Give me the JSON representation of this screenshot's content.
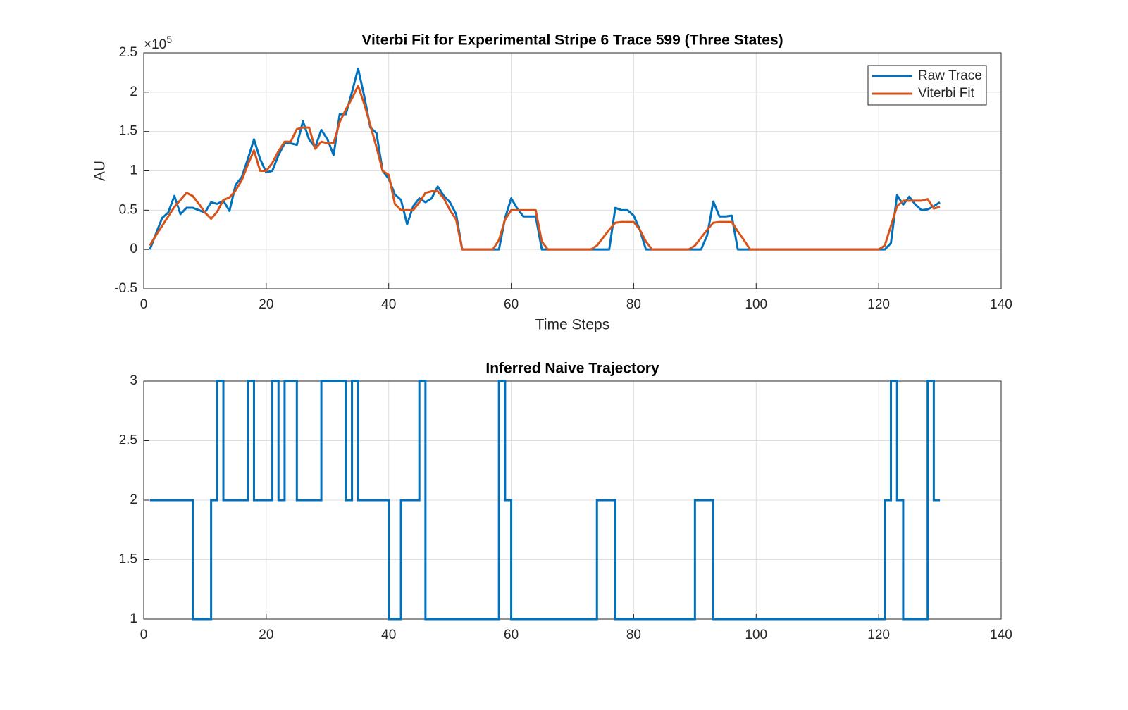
{
  "chart_data": [
    {
      "type": "line",
      "title": "Viterbi Fit for Experimental Stripe 6 Trace 599 (Three States)",
      "xlabel": "Time Steps",
      "ylabel": "AU",
      "y_multiplier": "×10",
      "y_multiplier_power": "5",
      "x": [
        1,
        2,
        3,
        4,
        5,
        6,
        7,
        8,
        9,
        10,
        11,
        12,
        13,
        14,
        15,
        16,
        17,
        18,
        19,
        20,
        21,
        22,
        23,
        24,
        25,
        26,
        27,
        28,
        29,
        30,
        31,
        32,
        33,
        34,
        35,
        36,
        37,
        38,
        39,
        40,
        41,
        42,
        43,
        44,
        45,
        46,
        47,
        48,
        49,
        50,
        51,
        52,
        53,
        54,
        55,
        56,
        57,
        58,
        59,
        60,
        61,
        62,
        63,
        64,
        65,
        66,
        67,
        68,
        69,
        70,
        71,
        72,
        73,
        74,
        75,
        76,
        77,
        78,
        79,
        80,
        81,
        82,
        83,
        84,
        85,
        86,
        87,
        88,
        89,
        90,
        91,
        92,
        93,
        94,
        95,
        96,
        97,
        98,
        99,
        100,
        101,
        102,
        103,
        104,
        105,
        106,
        107,
        108,
        109,
        110,
        111,
        112,
        113,
        114,
        115,
        116,
        117,
        118,
        119,
        120,
        121,
        122,
        123,
        124,
        125,
        126,
        127,
        128,
        129,
        130
      ],
      "series": [
        {
          "name": "Raw Trace",
          "color": "#0072BD",
          "values": [
            0,
            20000,
            40000,
            47000,
            68000,
            45000,
            53000,
            53000,
            50000,
            47000,
            60000,
            58000,
            62000,
            49000,
            82000,
            92000,
            115000,
            140000,
            115000,
            98000,
            100000,
            120000,
            135000,
            135000,
            133000,
            163000,
            140000,
            130000,
            152000,
            140000,
            120000,
            172000,
            172000,
            200000,
            230000,
            195000,
            155000,
            148000,
            100000,
            90000,
            70000,
            63000,
            32000,
            55000,
            65000,
            60000,
            65000,
            80000,
            68000,
            60000,
            45000,
            0,
            0,
            0,
            0,
            0,
            0,
            0,
            40000,
            65000,
            52000,
            42000,
            42000,
            42000,
            0,
            0,
            0,
            0,
            0,
            0,
            0,
            0,
            0,
            0,
            0,
            0,
            53000,
            50000,
            50000,
            43000,
            25000,
            0,
            0,
            0,
            0,
            0,
            0,
            0,
            0,
            0,
            0,
            18000,
            61000,
            42000,
            42000,
            43000,
            0,
            0,
            0,
            0,
            0,
            0,
            0,
            0,
            0,
            0,
            0,
            0,
            0,
            0,
            0,
            0,
            0,
            0,
            0,
            0,
            0,
            0,
            0,
            0,
            0,
            8000,
            69000,
            57000,
            67000,
            57000,
            50000,
            51000,
            55000,
            60000
          ]
        },
        {
          "name": "Viterbi Fit",
          "color": "#D95319",
          "values": [
            5000,
            18000,
            30000,
            42000,
            54000,
            63000,
            72000,
            68000,
            58000,
            47000,
            39000,
            48000,
            63000,
            66000,
            75000,
            88000,
            108000,
            126000,
            100000,
            100000,
            110000,
            125000,
            137000,
            137000,
            153000,
            155000,
            155000,
            128000,
            137000,
            135000,
            135000,
            162000,
            178000,
            192000,
            208000,
            185000,
            158000,
            130000,
            100000,
            95000,
            58000,
            50000,
            50000,
            50000,
            60000,
            72000,
            74000,
            74000,
            65000,
            50000,
            38000,
            0,
            0,
            0,
            0,
            0,
            0,
            12000,
            38000,
            50000,
            50000,
            50000,
            50000,
            50000,
            10000,
            0,
            0,
            0,
            0,
            0,
            0,
            0,
            0,
            5000,
            15000,
            25000,
            34000,
            35000,
            35000,
            35000,
            25000,
            10000,
            0,
            0,
            0,
            0,
            0,
            0,
            0,
            5000,
            15000,
            25000,
            34000,
            35000,
            35000,
            35000,
            23000,
            12000,
            0,
            0,
            0,
            0,
            0,
            0,
            0,
            0,
            0,
            0,
            0,
            0,
            0,
            0,
            0,
            0,
            0,
            0,
            0,
            0,
            0,
            0,
            5000,
            30000,
            55000,
            62000,
            62000,
            62000,
            62000,
            64000,
            52000,
            54000
          ]
        }
      ],
      "xlim": [
        0,
        140
      ],
      "xticks": [
        0,
        20,
        40,
        60,
        80,
        100,
        120,
        140
      ],
      "ylim": [
        -50000,
        250000
      ],
      "yticks": [
        {
          "value": -50000,
          "label": "-0.5"
        },
        {
          "value": 0,
          "label": "0"
        },
        {
          "value": 50000,
          "label": "0.5"
        },
        {
          "value": 100000,
          "label": "1"
        },
        {
          "value": 150000,
          "label": "1.5"
        },
        {
          "value": 200000,
          "label": "2"
        },
        {
          "value": 250000,
          "label": "2.5"
        }
      ],
      "grid": true,
      "legend": "northeast"
    },
    {
      "type": "stairs",
      "title": "Inferred Naive Trajectory",
      "x": [
        1,
        2,
        3,
        4,
        5,
        6,
        7,
        8,
        9,
        10,
        11,
        12,
        13,
        14,
        15,
        16,
        17,
        18,
        19,
        20,
        21,
        22,
        23,
        24,
        25,
        26,
        27,
        28,
        29,
        30,
        31,
        32,
        33,
        34,
        35,
        36,
        37,
        38,
        39,
        40,
        41,
        42,
        43,
        44,
        45,
        46,
        47,
        48,
        49,
        50,
        51,
        52,
        53,
        54,
        55,
        56,
        57,
        58,
        59,
        60,
        61,
        62,
        63,
        64,
        65,
        66,
        67,
        68,
        69,
        70,
        71,
        72,
        73,
        74,
        75,
        76,
        77,
        78,
        79,
        80,
        81,
        82,
        83,
        84,
        85,
        86,
        87,
        88,
        89,
        90,
        91,
        92,
        93,
        94,
        95,
        96,
        97,
        98,
        99,
        100,
        101,
        102,
        103,
        104,
        105,
        106,
        107,
        108,
        109,
        110,
        111,
        112,
        113,
        114,
        115,
        116,
        117,
        118,
        119,
        120,
        121,
        122,
        123,
        124,
        125,
        126,
        127,
        128,
        129,
        130
      ],
      "color": "#0072BD",
      "values": [
        2,
        2,
        2,
        2,
        2,
        2,
        2,
        1,
        1,
        1,
        2,
        3,
        2,
        2,
        2,
        2,
        3,
        2,
        2,
        2,
        3,
        2,
        3,
        3,
        2,
        2,
        2,
        2,
        3,
        3,
        3,
        3,
        2,
        3,
        2,
        2,
        2,
        2,
        2,
        1,
        1,
        2,
        2,
        2,
        3,
        1,
        1,
        1,
        1,
        1,
        1,
        1,
        1,
        1,
        1,
        1,
        1,
        3,
        2,
        1,
        1,
        1,
        1,
        1,
        1,
        1,
        1,
        1,
        1,
        1,
        1,
        1,
        1,
        2,
        2,
        2,
        1,
        1,
        1,
        1,
        1,
        1,
        1,
        1,
        1,
        1,
        1,
        1,
        1,
        2,
        2,
        2,
        1,
        1,
        1,
        1,
        1,
        1,
        1,
        1,
        1,
        1,
        1,
        1,
        1,
        1,
        1,
        1,
        1,
        1,
        1,
        1,
        1,
        1,
        1,
        1,
        1,
        1,
        1,
        1,
        2,
        3,
        2,
        1,
        1,
        1,
        1,
        3,
        2,
        2
      ],
      "xlim": [
        0,
        140
      ],
      "xticks": [
        0,
        20,
        40,
        60,
        80,
        100,
        120,
        140
      ],
      "ylim": [
        1,
        3
      ],
      "yticks": [
        1,
        1.5,
        2,
        2.5,
        3
      ],
      "grid": true
    }
  ]
}
